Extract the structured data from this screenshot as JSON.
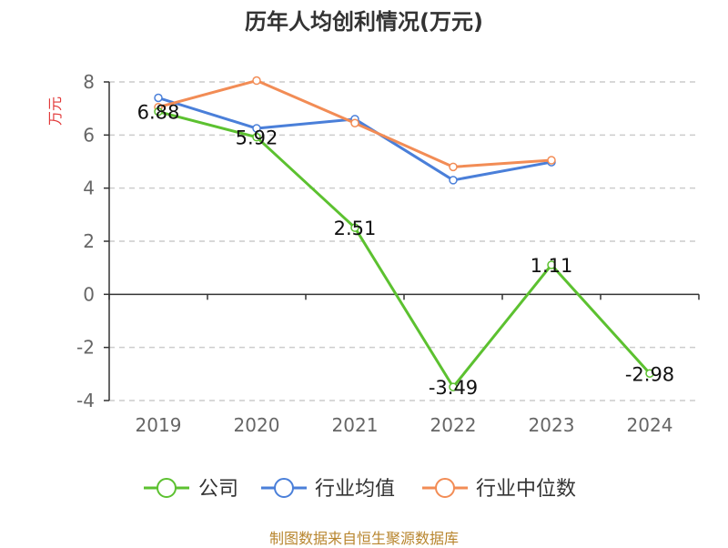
{
  "chart_data": {
    "type": "line",
    "title": "历年人均创利情况(万元)",
    "ylabel": "万元",
    "xlabel": "",
    "categories": [
      "2019",
      "2020",
      "2021",
      "2022",
      "2023",
      "2024"
    ],
    "y_ticks": [
      "8",
      "6",
      "4",
      "2",
      "0",
      "-2",
      "-4"
    ],
    "ylim": [
      -4,
      8
    ],
    "grid": true,
    "legend_position": "bottom",
    "series": [
      {
        "name": "公司",
        "color": "#5cc130",
        "values": [
          6.88,
          5.92,
          2.51,
          -3.49,
          1.11,
          -2.98
        ],
        "labels": [
          "6.88",
          "5.92",
          "2.51",
          "-3.49",
          "1.11",
          "-2.98"
        ]
      },
      {
        "name": "行业均值",
        "color": "#4a7fd9",
        "values": [
          7.4,
          6.25,
          6.6,
          4.3,
          4.98,
          null
        ]
      },
      {
        "name": "行业中位数",
        "color": "#f28c55",
        "values": [
          7.05,
          8.05,
          6.45,
          4.8,
          5.05,
          null
        ]
      }
    ]
  },
  "footer": "制图数据来自恒生聚源数据库"
}
